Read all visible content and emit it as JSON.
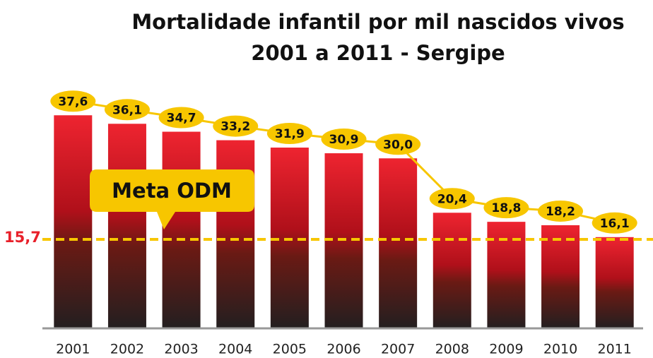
{
  "chart_data": {
    "type": "bar",
    "title": "Mortalidade infantil por mil nascidos vivos",
    "subtitle": "2001 a 2011 - Sergipe",
    "categories": [
      "2001",
      "2002",
      "2003",
      "2004",
      "2005",
      "2006",
      "2007",
      "2008",
      "2009",
      "2010",
      "2011"
    ],
    "values": [
      37.6,
      36.1,
      34.7,
      33.2,
      31.9,
      30.9,
      30.0,
      20.4,
      18.8,
      18.2,
      16.1
    ],
    "value_labels": [
      "37,6",
      "36,1",
      "34,7",
      "33,2",
      "31,9",
      "30,9",
      "30,0",
      "20,4",
      "18,8",
      "18,2",
      "16,1"
    ],
    "color": "#e8202a",
    "ylim": [
      0,
      40
    ],
    "target": {
      "value": 15.7,
      "label": "15,7"
    },
    "annotation": "Meta ODM"
  }
}
